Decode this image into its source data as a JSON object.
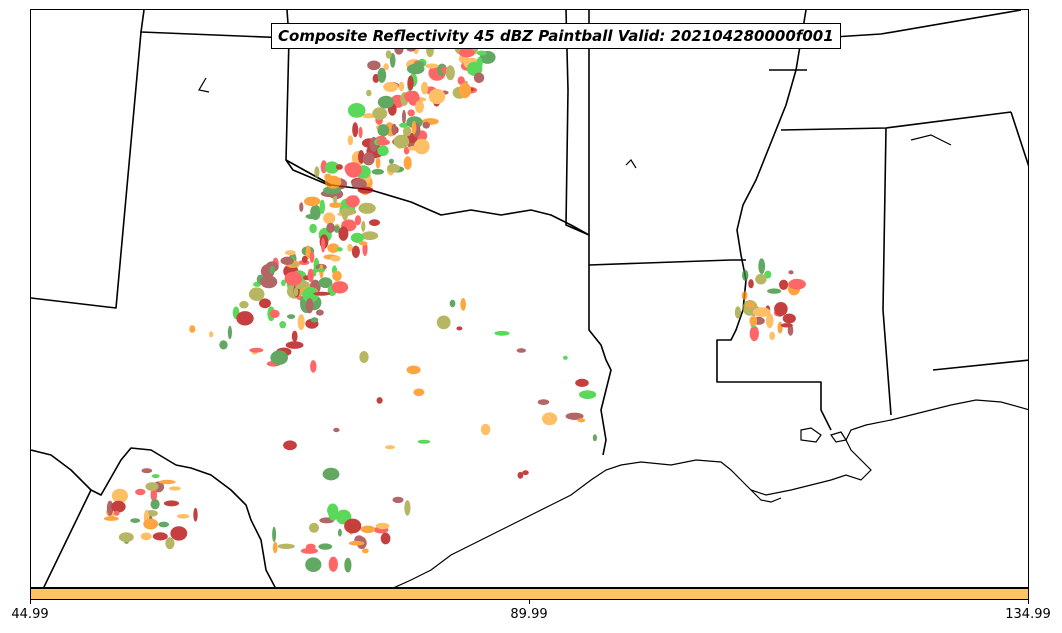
{
  "title": "Composite Reflectivity 45 dBZ Paintball Valid: 202104280000f001",
  "colorbar": {
    "color": "#ffc266",
    "ticks": [
      "44.99",
      "89.99",
      "134.99"
    ]
  },
  "colors": {
    "paintball": [
      "#ff3333",
      "#22cc22",
      "#ff8800",
      "#ffaa33",
      "#b30000",
      "#2e8b2e",
      "#a0a030",
      "#993333"
    ],
    "boundary": "#000000"
  }
}
